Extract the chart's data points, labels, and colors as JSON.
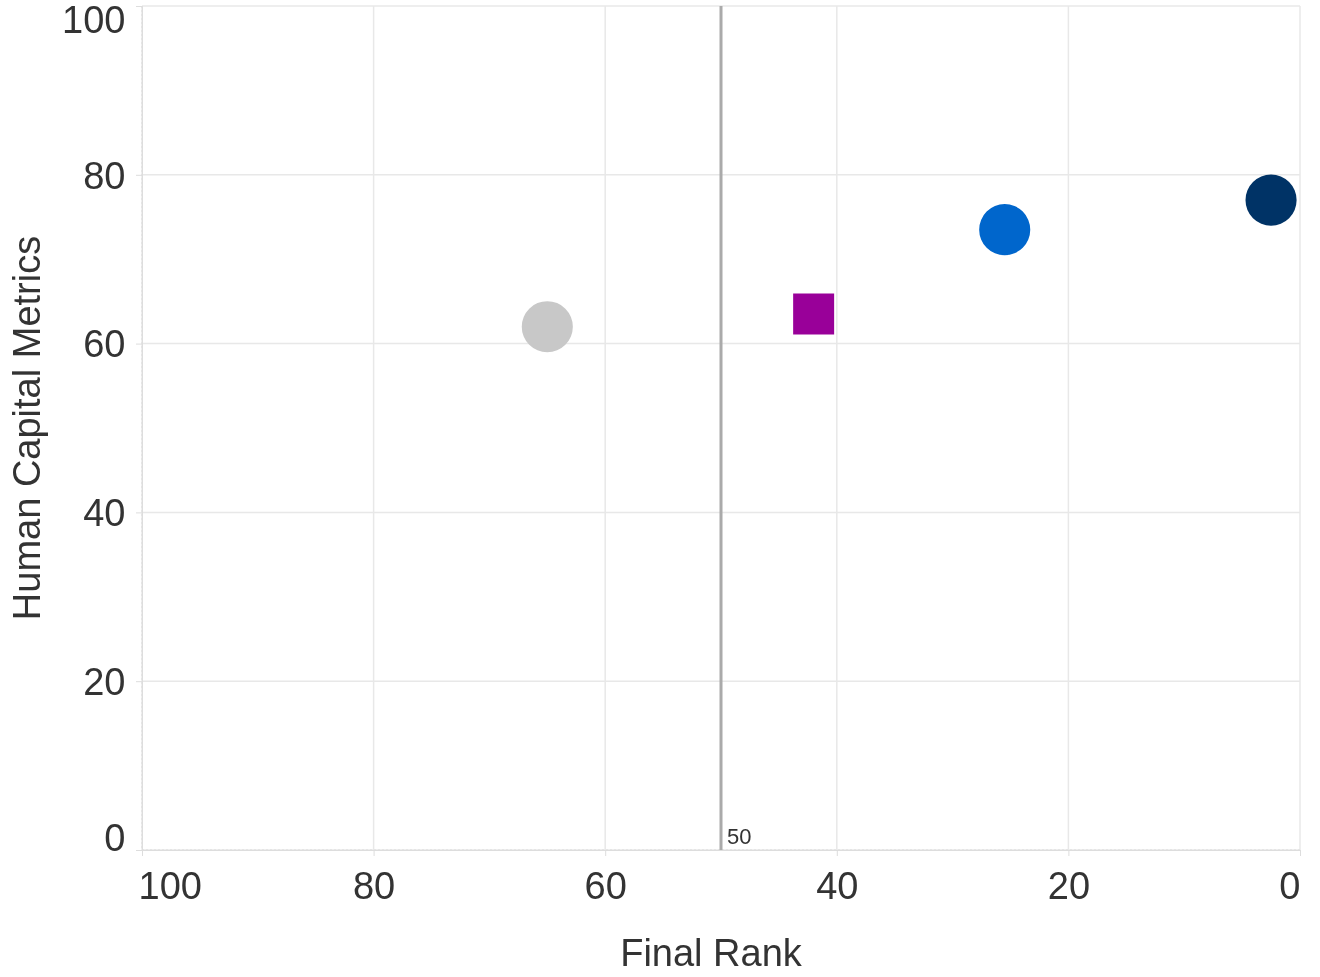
{
  "chart_data": {
    "type": "scatter",
    "xlabel": "Final Rank",
    "ylabel": "Human Capital Metrics",
    "xlim": [
      100,
      0
    ],
    "xticks": [
      100,
      80,
      60,
      40,
      20,
      0
    ],
    "ylim": [
      0,
      100
    ],
    "yticks": [
      0,
      20,
      40,
      60,
      80,
      100
    ],
    "grid": true,
    "series": [
      {
        "x": [
          65
        ],
        "values": [
          62
        ],
        "color": "#c8c8c8",
        "marker": "circle"
      },
      {
        "x": [
          42
        ],
        "values": [
          63.5
        ],
        "color": "#990099",
        "marker": "square"
      },
      {
        "x": [
          25.5
        ],
        "values": [
          73.5
        ],
        "color": "#0066cc",
        "marker": "circle"
      },
      {
        "x": [
          2.5
        ],
        "values": [
          77
        ],
        "color": "#003366",
        "marker": "circle"
      }
    ],
    "ref_lines": [
      {
        "axis": "x",
        "value": 50,
        "label": "50",
        "color": "#aaaaaa"
      }
    ]
  }
}
